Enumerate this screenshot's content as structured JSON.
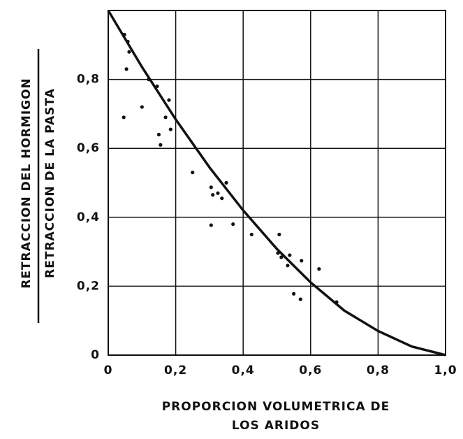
{
  "chart_data": {
    "type": "scatter",
    "x_label_lines": [
      "PROPORCION  VOLUMETRICA  DE",
      "LOS  ARIDOS"
    ],
    "y_label_numerator": "RETRACCION  DEL  HORMIGON",
    "y_label_denominator": "RETRACCION  DE  LA  PASTA",
    "xlim": [
      0,
      1
    ],
    "ylim": [
      0,
      1
    ],
    "xticks": [
      0,
      {
        "value": 0.2,
        "label": "0,2"
      },
      {
        "value": 0.4,
        "label": "0,4"
      },
      {
        "value": 0.6,
        "label": "0,6"
      },
      {
        "value": 0.8,
        "label": "0,8"
      },
      {
        "value": 1.0,
        "label": "1,0"
      }
    ],
    "yticks": [
      0,
      {
        "value": 0.2,
        "label": "0,2"
      },
      {
        "value": 0.4,
        "label": "0,4"
      },
      {
        "value": 0.6,
        "label": "0,6"
      },
      {
        "value": 0.8,
        "label": "0,8"
      }
    ],
    "grid": true,
    "color": "#111",
    "points": {
      "x": [
        0.048,
        0.058,
        0.062,
        0.054,
        0.046,
        0.1,
        0.12,
        0.145,
        0.15,
        0.155,
        0.17,
        0.18,
        0.185,
        0.25,
        0.305,
        0.31,
        0.325,
        0.337,
        0.35,
        0.305,
        0.37,
        0.425,
        0.507,
        0.503,
        0.513,
        0.532,
        0.538,
        0.55,
        0.57,
        0.573,
        0.625,
        0.677
      ],
      "y": [
        0.93,
        0.91,
        0.88,
        0.83,
        0.69,
        0.72,
        0.8,
        0.78,
        0.64,
        0.61,
        0.69,
        0.74,
        0.655,
        0.53,
        0.487,
        0.465,
        0.47,
        0.455,
        0.5,
        0.377,
        0.38,
        0.35,
        0.35,
        0.296,
        0.284,
        0.26,
        0.29,
        0.178,
        0.162,
        0.274,
        0.25,
        0.154
      ]
    },
    "curve": {
      "x": [
        0,
        0.1,
        0.2,
        0.3,
        0.4,
        0.5,
        0.6,
        0.7,
        0.8,
        0.9,
        1.0
      ],
      "y": [
        1.0,
        0.836,
        0.684,
        0.545,
        0.42,
        0.308,
        0.211,
        0.129,
        0.07,
        0.025,
        0
      ]
    }
  }
}
